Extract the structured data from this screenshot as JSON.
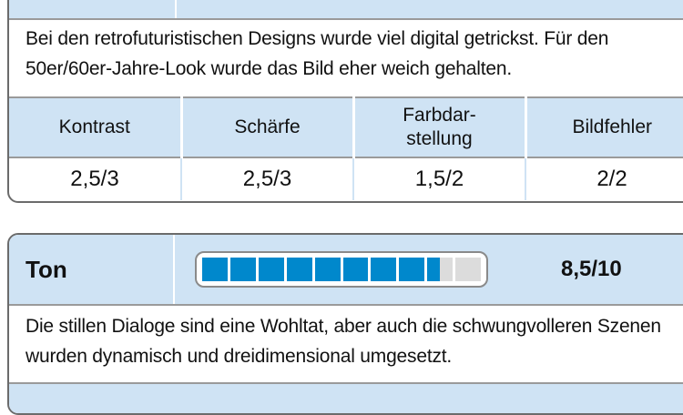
{
  "bild": {
    "description": "Bei den retrofuturistischen Designs wurde viel digital getrickst. Für den 50er/60er-Jahre-Look wurde das Bild eher weich gehalten.",
    "columns": [
      {
        "label": "Kontrast",
        "value": "2,5/3"
      },
      {
        "label": "Schärfe",
        "value": "2,5/3"
      },
      {
        "label": "Farbdar-\nstellung",
        "value": "1,5/2"
      },
      {
        "label": "Bildfehler",
        "value": "2/2"
      }
    ]
  },
  "ton": {
    "label": "Ton",
    "score_text": "8,5/10",
    "meter": {
      "value": 8.5,
      "max": 10
    },
    "description": "Die stillen Dialoge sind eine Wohltat, aber auch die schwungvolleren Szenen wurden dynamisch und dreidimensional umgesetzt."
  },
  "colors": {
    "header_bg": "#cfe3f4",
    "meter_fill": "#0088cc",
    "meter_empty": "#dcdcdc"
  }
}
